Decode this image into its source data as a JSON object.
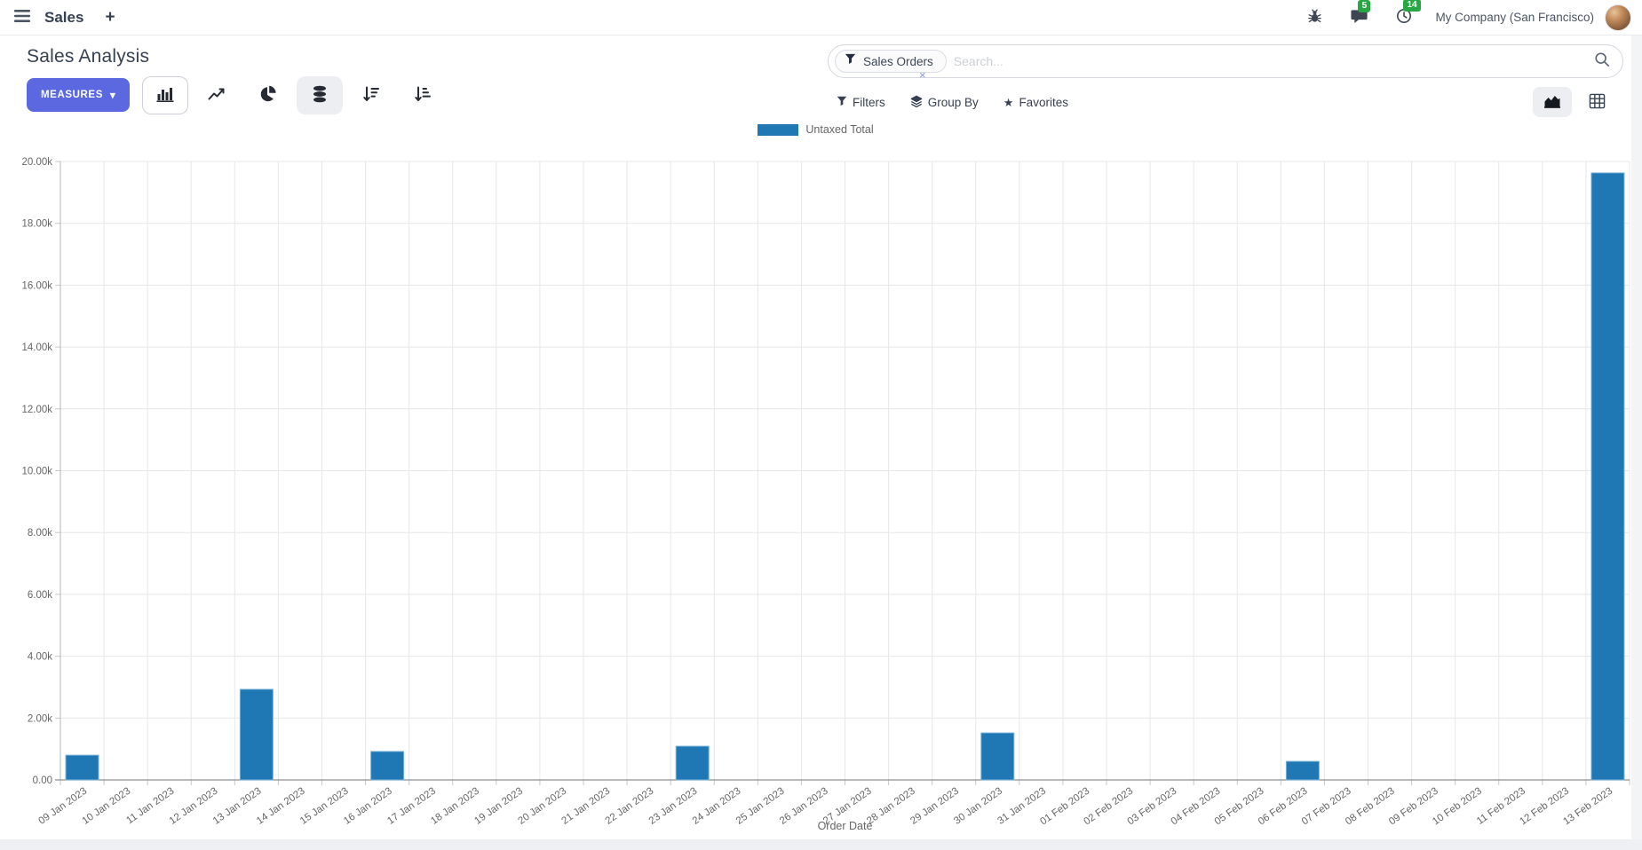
{
  "nav": {
    "app_menu_label": "Sales",
    "new_tab_label": "+",
    "messages_badge": "5",
    "activities_badge": "14",
    "company": "My Company (San Francisco)"
  },
  "control_panel": {
    "title": "Sales Analysis",
    "measures_label": "MEASURES",
    "search": {
      "facet_label": "Sales Orders",
      "placeholder": "Search...",
      "remove_symbol": "×"
    },
    "filters_label": "Filters",
    "group_by_label": "Group By",
    "favorites_label": "Favorites"
  },
  "icons": {
    "star": "★",
    "caret_down": "▾"
  },
  "colors": {
    "accent": "#5b68e0",
    "bar_blue": "#1f77b4",
    "badge_green": "#28a745",
    "axis_text": "#666666",
    "gridline": "#e7e7e7"
  },
  "chart_data": {
    "type": "bar",
    "title": "",
    "xlabel": "Order Date",
    "ylabel": "",
    "ylim": [
      0,
      20000
    ],
    "y_tick_step": 2000,
    "y_tick_labels": [
      "0.00",
      "2.00k",
      "4.00k",
      "6.00k",
      "8.00k",
      "10.00k",
      "12.00k",
      "14.00k",
      "16.00k",
      "18.00k",
      "20.00k"
    ],
    "grid": true,
    "legend_position": "top",
    "categories": [
      "09 Jan 2023",
      "10 Jan 2023",
      "11 Jan 2023",
      "12 Jan 2023",
      "13 Jan 2023",
      "14 Jan 2023",
      "15 Jan 2023",
      "16 Jan 2023",
      "17 Jan 2023",
      "18 Jan 2023",
      "19 Jan 2023",
      "20 Jan 2023",
      "21 Jan 2023",
      "22 Jan 2023",
      "23 Jan 2023",
      "24 Jan 2023",
      "25 Jan 2023",
      "26 Jan 2023",
      "27 Jan 2023",
      "28 Jan 2023",
      "29 Jan 2023",
      "30 Jan 2023",
      "31 Jan 2023",
      "01 Feb 2023",
      "02 Feb 2023",
      "03 Feb 2023",
      "04 Feb 2023",
      "05 Feb 2023",
      "06 Feb 2023",
      "07 Feb 2023",
      "08 Feb 2023",
      "09 Feb 2023",
      "10 Feb 2023",
      "11 Feb 2023",
      "12 Feb 2023",
      "13 Feb 2023"
    ],
    "series": [
      {
        "name": "Untaxed Total",
        "color": "#1f77b4",
        "values": [
          800,
          0,
          0,
          0,
          2930,
          0,
          0,
          920,
          0,
          0,
          0,
          0,
          0,
          0,
          1090,
          0,
          0,
          0,
          0,
          0,
          0,
          1520,
          0,
          0,
          0,
          0,
          0,
          0,
          600,
          0,
          0,
          0,
          0,
          0,
          0,
          19630
        ]
      }
    ]
  }
}
